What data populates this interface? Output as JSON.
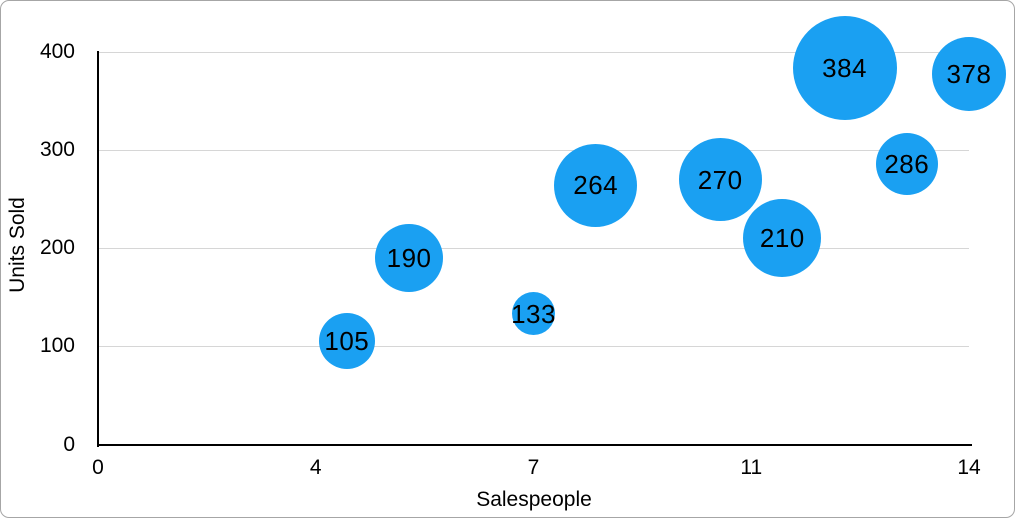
{
  "chart_data": {
    "type": "scatter",
    "subtype": "bubble",
    "title": "",
    "xlabel": "Salespeople",
    "ylabel": "Units Sold",
    "xlim": [
      0,
      14
    ],
    "ylim": [
      0,
      400
    ],
    "grid": "horizontal-only",
    "legend": "none",
    "x_ticks": [
      {
        "value": 0,
        "label": "0"
      },
      {
        "value": 3.5,
        "label": "4"
      },
      {
        "value": 7,
        "label": "7"
      },
      {
        "value": 10.5,
        "label": "11"
      },
      {
        "value": 14,
        "label": "14"
      }
    ],
    "y_ticks": [
      {
        "value": 0,
        "label": "0"
      },
      {
        "value": 100,
        "label": "100"
      },
      {
        "value": 200,
        "label": "200"
      },
      {
        "value": 300,
        "label": "300"
      },
      {
        "value": 400,
        "label": "400"
      }
    ],
    "series": [
      {
        "color": "#1aa0f2",
        "label_color": "#000000",
        "points": [
          {
            "x": 4,
            "y": 105,
            "label": "105",
            "radius_px": 28
          },
          {
            "x": 5,
            "y": 190,
            "label": "190",
            "radius_px": 34
          },
          {
            "x": 7,
            "y": 133,
            "label": "133",
            "radius_px": 21.5
          },
          {
            "x": 8,
            "y": 264,
            "label": "264",
            "radius_px": 41.5
          },
          {
            "x": 10,
            "y": 270,
            "label": "270",
            "radius_px": 41.5
          },
          {
            "x": 11,
            "y": 210,
            "label": "210",
            "radius_px": 39
          },
          {
            "x": 12,
            "y": 384,
            "label": "384",
            "radius_px": 52
          },
          {
            "x": 13,
            "y": 286,
            "label": "286",
            "radius_px": 31
          },
          {
            "x": 14,
            "y": 378,
            "label": "378",
            "radius_px": 37
          }
        ]
      }
    ],
    "colors": {
      "background": "#ffffff",
      "figure_border": "#a6a6a6",
      "axis_line": "#000000",
      "gridline": "#d6d6d6",
      "tick_label": "#000000"
    }
  }
}
